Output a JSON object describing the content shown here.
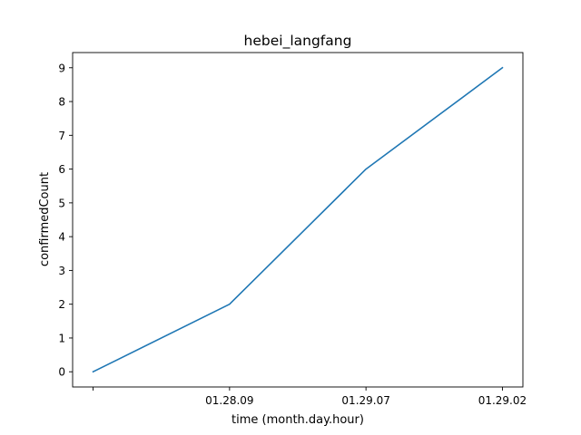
{
  "chart_data": {
    "type": "line",
    "title": "hebei_langfang",
    "xlabel": "time (month.day.hour)",
    "ylabel": "confirmedCount",
    "categories": [
      "",
      "01.28.09",
      "01.29.07",
      "01.29.02"
    ],
    "series": [
      {
        "values": [
          0,
          2,
          6,
          9
        ],
        "color": "#1f77b4"
      }
    ],
    "ylim": [
      -0.45,
      9.45
    ],
    "yticks": [
      0,
      1,
      2,
      3,
      4,
      5,
      6,
      7,
      8,
      9
    ],
    "grid": false,
    "legend": "none"
  }
}
